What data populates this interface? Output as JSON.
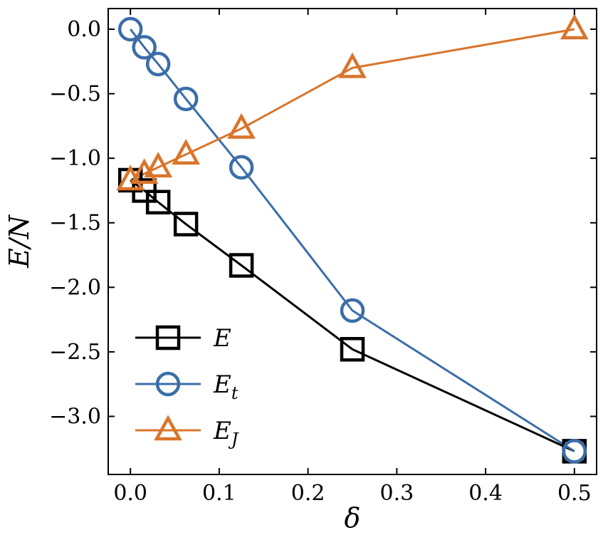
{
  "chart_data": {
    "type": "line",
    "x": [
      0,
      0.015625,
      0.03125,
      0.0625,
      0.125,
      0.25,
      0.5
    ],
    "series": [
      {
        "name": "E",
        "legend_main": "E",
        "legend_sub": "",
        "color": "#000000",
        "marker": "square",
        "values": [
          -1.17,
          -1.25,
          -1.34,
          -1.51,
          -1.83,
          -2.48,
          -3.27
        ]
      },
      {
        "name": "E_t",
        "legend_main": "E",
        "legend_sub": "t",
        "color": "#3b6ea8",
        "marker": "circle",
        "values": [
          0.0,
          -0.14,
          -0.27,
          -0.54,
          -1.07,
          -2.18,
          -3.27
        ]
      },
      {
        "name": "E_J",
        "legend_main": "E",
        "legend_sub": "J",
        "color": "#d9752b",
        "marker": "triangle",
        "values": [
          -1.17,
          -1.12,
          -1.07,
          -0.97,
          -0.77,
          -0.3,
          0.0
        ]
      }
    ],
    "xlabel": "δ",
    "ylabel": "E/N",
    "xlim": [
      -0.025,
      0.525
    ],
    "ylim": [
      -3.45,
      0.16
    ],
    "xticks": [
      0.0,
      0.1,
      0.2,
      0.3,
      0.4,
      0.5
    ],
    "xtick_labels": [
      "0.0",
      "0.1",
      "0.2",
      "0.3",
      "0.4",
      "0.5"
    ],
    "yticks": [
      0.0,
      -0.5,
      -1.0,
      -1.5,
      -2.0,
      -2.5,
      -3.0
    ],
    "ytick_labels": [
      "0.0",
      "−0.5",
      "−1.0",
      "−1.5",
      "−2.0",
      "−2.5",
      "−3.0"
    ],
    "grid": false,
    "legend_position": "lower-left",
    "title": ""
  }
}
